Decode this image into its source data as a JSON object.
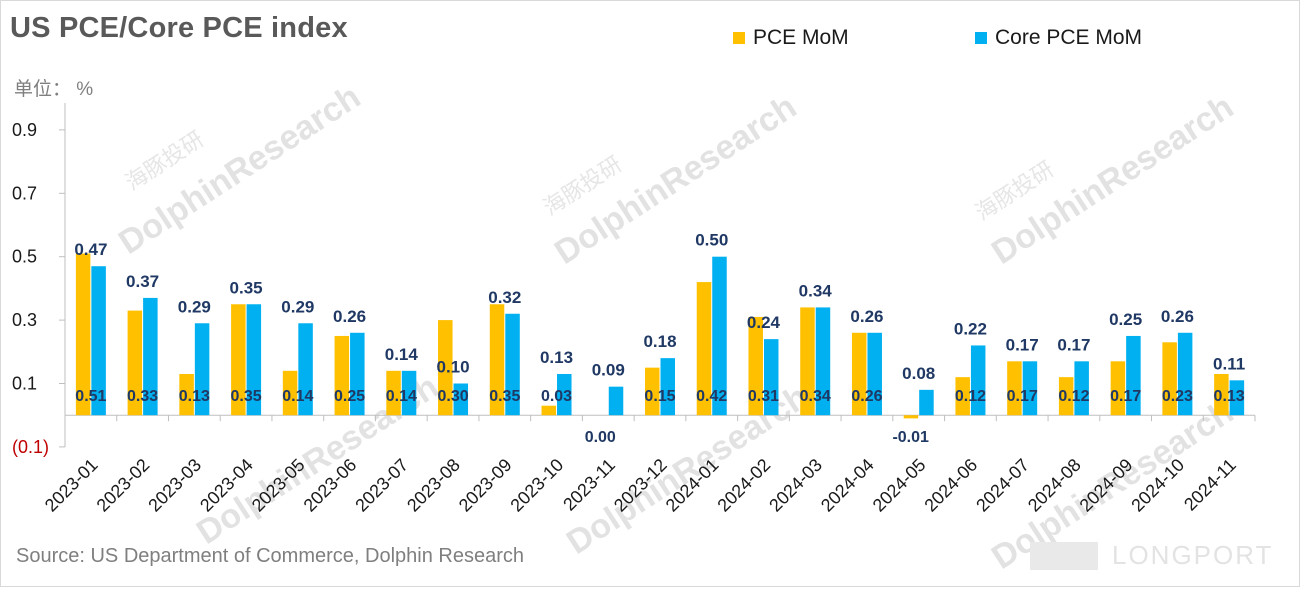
{
  "title": "US PCE/Core PCE index",
  "unit_label": "单位： %",
  "source": "Source: US Department of Commerce, Dolphin Research",
  "watermark": {
    "text": "DolphinResearch",
    "cn": "海豚投研",
    "logo": "LONGPORT"
  },
  "legend": [
    {
      "name": "PCE MoM",
      "color": "#FFC000"
    },
    {
      "name": "Core PCE MoM",
      "color": "#00B0F0"
    }
  ],
  "chart_data": {
    "type": "bar",
    "title": "US PCE/Core PCE index",
    "ylabel": "单位： %",
    "ylim": [
      -0.1,
      1.0
    ],
    "yticks": [
      {
        "value": 0.9,
        "label": "0.9"
      },
      {
        "value": 0.7,
        "label": "0.7"
      },
      {
        "value": 0.5,
        "label": "0.5"
      },
      {
        "value": 0.3,
        "label": "0.3"
      },
      {
        "value": 0.1,
        "label": "0.1"
      },
      {
        "value": -0.1,
        "label": "(0.1)"
      }
    ],
    "categories": [
      "2023-01",
      "2023-02",
      "2023-03",
      "2023-04",
      "2023-05",
      "2023-06",
      "2023-07",
      "2023-08",
      "2023-09",
      "2023-10",
      "2023-11",
      "2023-12",
      "2024-01",
      "2024-02",
      "2024-03",
      "2024-04",
      "2024-05",
      "2024-06",
      "2024-07",
      "2024-08",
      "2024-09",
      "2024-10",
      "2024-11"
    ],
    "series": [
      {
        "name": "PCE MoM",
        "color": "#FFC000",
        "values": [
          0.51,
          0.33,
          0.13,
          0.35,
          0.14,
          0.25,
          0.14,
          0.3,
          0.35,
          0.03,
          null,
          0.15,
          0.42,
          0.31,
          0.34,
          0.26,
          -0.01,
          0.12,
          0.17,
          0.12,
          0.17,
          0.23,
          0.13
        ],
        "labels": [
          "0.51",
          "0.33",
          "0.13",
          "0.35",
          "0.14",
          "0.25",
          "0.14",
          "0.30",
          "0.35",
          "0.03",
          "",
          "0.15",
          "0.42",
          "0.31",
          "0.34",
          "0.26",
          "",
          "0.12",
          "0.17",
          "0.12",
          "0.17",
          "0.23",
          "0.13"
        ]
      },
      {
        "name": "Core PCE MoM",
        "color": "#00B0F0",
        "values": [
          0.47,
          0.37,
          0.29,
          0.35,
          0.29,
          0.26,
          0.14,
          0.1,
          0.32,
          0.13,
          0.09,
          0.18,
          0.5,
          0.24,
          0.34,
          0.26,
          0.08,
          0.22,
          0.17,
          0.17,
          0.25,
          0.26,
          0.11
        ],
        "labels": [
          "0.47",
          "0.37",
          "0.29",
          "0.35",
          "0.29",
          "0.26",
          "0.14",
          "0.10",
          "0.32",
          "0.13",
          "0.09",
          "0.18",
          "0.50",
          "0.24",
          "0.34",
          "0.26",
          "0.08",
          "0.22",
          "0.17",
          "0.17",
          "0.25",
          "0.26",
          "0.11"
        ]
      }
    ],
    "extra_labels": [
      {
        "category": "2023-11",
        "text": "0.00"
      },
      {
        "category": "2024-05",
        "text": "-0.01"
      }
    ],
    "grid": false,
    "legend_position": "top-right"
  }
}
